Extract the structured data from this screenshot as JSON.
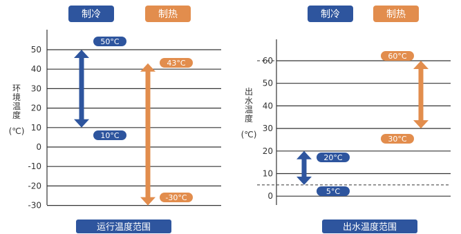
{
  "colors": {
    "cool": "#2e559e",
    "heat": "#e28d4d",
    "grid": "#333333",
    "text": "#333333",
    "badge_text": "#ffffff"
  },
  "chart_data": [
    {
      "type": "range",
      "title": "",
      "legend": [
        "制冷",
        "制热"
      ],
      "ylabel": "环境温度",
      "yunit": "(℃)",
      "yticks": [
        50,
        40,
        30,
        20,
        10,
        0,
        -10,
        -20,
        -30
      ],
      "ylim": [
        -30,
        53
      ],
      "dashed_lines": [],
      "series": [
        {
          "name": "制冷",
          "color_key": "cool",
          "min": 10,
          "max": 50,
          "min_label": "10°C",
          "max_label": "50°C"
        },
        {
          "name": "制热",
          "color_key": "heat",
          "min": -30,
          "max": 43,
          "min_label": "-30°C",
          "max_label": "43°C"
        }
      ],
      "caption": "运行温度范围"
    },
    {
      "type": "range",
      "title": "",
      "legend": [
        "制冷",
        "制热"
      ],
      "ylabel": "出水温度",
      "yunit": "(℃)",
      "yticks": [
        60,
        50,
        40,
        30,
        20,
        10,
        0
      ],
      "ylim": [
        0,
        67
      ],
      "dashed_lines": [
        60,
        5
      ],
      "series": [
        {
          "name": "制冷",
          "color_key": "cool",
          "min": 5,
          "max": 20,
          "min_label": "5°C",
          "max_label": "20°C"
        },
        {
          "name": "制热",
          "color_key": "heat",
          "min": 30,
          "max": 60,
          "min_label": "30°C",
          "max_label": "60°C"
        }
      ],
      "caption": "出水温度范围"
    }
  ]
}
